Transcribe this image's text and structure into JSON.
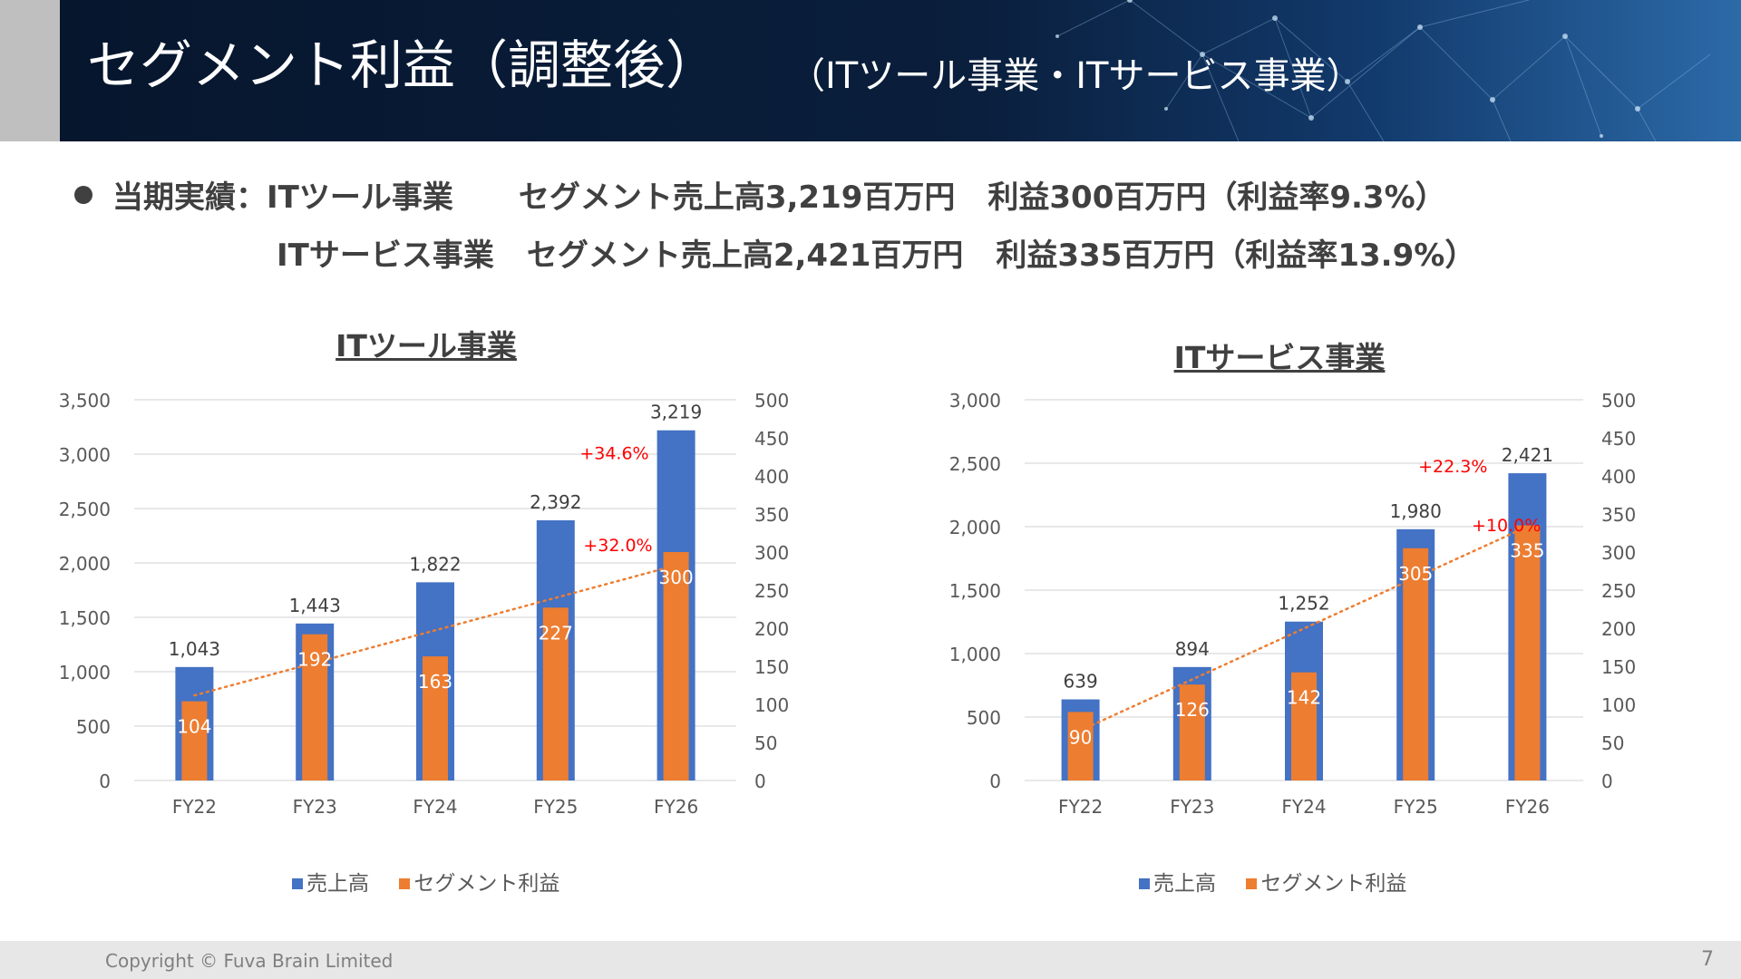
{
  "header": {
    "title": "セグメント利益（調整後）",
    "subtitle": "（ITツール事業・ITサービス事業）"
  },
  "summary": {
    "line1": {
      "prefix": "当期実績：ITツール事業",
      "sales": "セグメント売上高3,219百万円",
      "profit": "利益300百万円（利益率9.3%）"
    },
    "line2": {
      "prefix": "ITサービス事業",
      "sales": "セグメント売上高2,421百万円",
      "profit": "利益335百万円（利益率13.9%）"
    }
  },
  "colors": {
    "sales": "#4472c4",
    "profit": "#ed7d31",
    "growth": "#ff0000",
    "trend": "#ed7d31"
  },
  "chart_data": [
    {
      "type": "bar",
      "title": "ITツール事業",
      "categories": [
        "FY22",
        "FY23",
        "FY24",
        "FY25",
        "FY26"
      ],
      "series": [
        {
          "name": "売上高",
          "axis": "left",
          "values": [
            1043,
            1443,
            1822,
            2392,
            3219
          ],
          "labels": [
            "1,043",
            "1,443",
            "1,822",
            "2,392",
            "3,219"
          ]
        },
        {
          "name": "セグメント利益",
          "axis": "right",
          "values": [
            104,
            192,
            163,
            227,
            300
          ],
          "labels": [
            "104",
            "192",
            "163",
            "227",
            "300"
          ]
        }
      ],
      "y_left": {
        "min": 0,
        "max": 3500,
        "ticks": [
          "0",
          "500",
          "1,000",
          "1,500",
          "2,000",
          "2,500",
          "3,000",
          "3,500"
        ]
      },
      "y_right": {
        "min": 0,
        "max": 500,
        "ticks": [
          "0",
          "50",
          "100",
          "150",
          "200",
          "250",
          "300",
          "350",
          "400",
          "450",
          "500"
        ]
      },
      "trendline": "linear (セグメント利益)",
      "annotations": [
        {
          "text": "+34.6%",
          "category": "FY26",
          "series": "売上高"
        },
        {
          "text": "+32.0%",
          "category": "FY26",
          "series": "セグメント利益"
        }
      ],
      "grid": true,
      "legend": "bottom"
    },
    {
      "type": "bar",
      "title": "ITサービス事業",
      "categories": [
        "FY22",
        "FY23",
        "FY24",
        "FY25",
        "FY26"
      ],
      "series": [
        {
          "name": "売上高",
          "axis": "left",
          "values": [
            639,
            894,
            1252,
            1980,
            2421
          ],
          "labels": [
            "639",
            "894",
            "1,252",
            "1,980",
            "2,421"
          ]
        },
        {
          "name": "セグメント利益",
          "axis": "right",
          "values": [
            90,
            126,
            142,
            305,
            335
          ],
          "labels": [
            "90",
            "126",
            "142",
            "305",
            "335"
          ]
        }
      ],
      "y_left": {
        "min": 0,
        "max": 3000,
        "ticks": [
          "0",
          "500",
          "1,000",
          "1,500",
          "2,000",
          "2,500",
          "3,000"
        ]
      },
      "y_right": {
        "min": 0,
        "max": 500,
        "ticks": [
          "0",
          "50",
          "100",
          "150",
          "200",
          "250",
          "300",
          "350",
          "400",
          "450",
          "500"
        ]
      },
      "trendline": "linear (セグメント利益)",
      "annotations": [
        {
          "text": "+22.3%",
          "category": "FY26",
          "series": "売上高"
        },
        {
          "text": "+10.0%",
          "category": "FY26",
          "series": "セグメント利益"
        }
      ],
      "grid": true,
      "legend": "bottom"
    }
  ],
  "footer": {
    "copyright": "Copyright © Fuva Brain Limited",
    "page": "7"
  }
}
